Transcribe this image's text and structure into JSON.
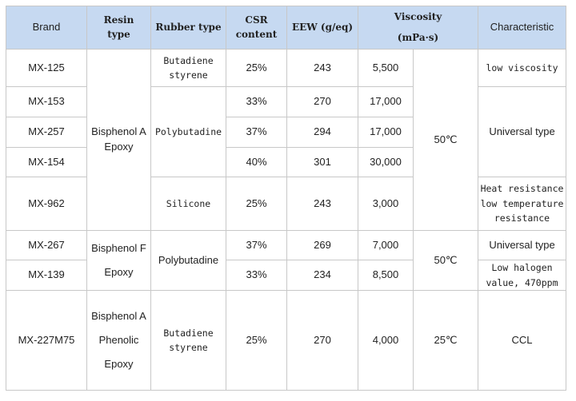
{
  "table": {
    "header": [
      "Brand",
      [
        "Resin",
        "type"
      ],
      "Rubber type",
      [
        "CSR",
        "content"
      ],
      "EEW (g/eq)",
      [
        "Viscosity",
        "(mPa·s)"
      ],
      "Characteristic"
    ],
    "rows": [
      [
        "MX-125",
        [
          "Bisphenol A",
          "Epoxy"
        ],
        [
          "Butadiene",
          "styrene"
        ],
        "25%",
        "243",
        "5,500",
        "50℃",
        "low viscosity"
      ],
      [
        "MX-153",
        "Polybutadine",
        "33%",
        "270",
        "17,000",
        "Universal type"
      ],
      [
        "MX-257",
        "37%",
        "294",
        "17,000"
      ],
      [
        "MX-154",
        "40%",
        "301",
        "30,000"
      ],
      [
        "MX-962",
        "Silicone",
        "25%",
        "243",
        "3,000",
        [
          "Heat resistance",
          "low temperature",
          "resistance"
        ]
      ],
      [
        "MX-267",
        [
          "Bisphenol F",
          "Epoxy"
        ],
        "Polybutadine",
        "37%",
        "269",
        "7,000",
        "50℃",
        "Universal type"
      ],
      [
        "MX-139",
        "33%",
        "234",
        "8,500",
        [
          "Low halogen",
          "value, 470ppm"
        ]
      ],
      [
        "MX-227M75",
        [
          "Bisphenol A",
          "Phenolic",
          "Epoxy"
        ],
        [
          "Butadiene",
          "styrene"
        ],
        "25%",
        "270",
        "4,000",
        "25℃",
        "CCL"
      ]
    ]
  }
}
